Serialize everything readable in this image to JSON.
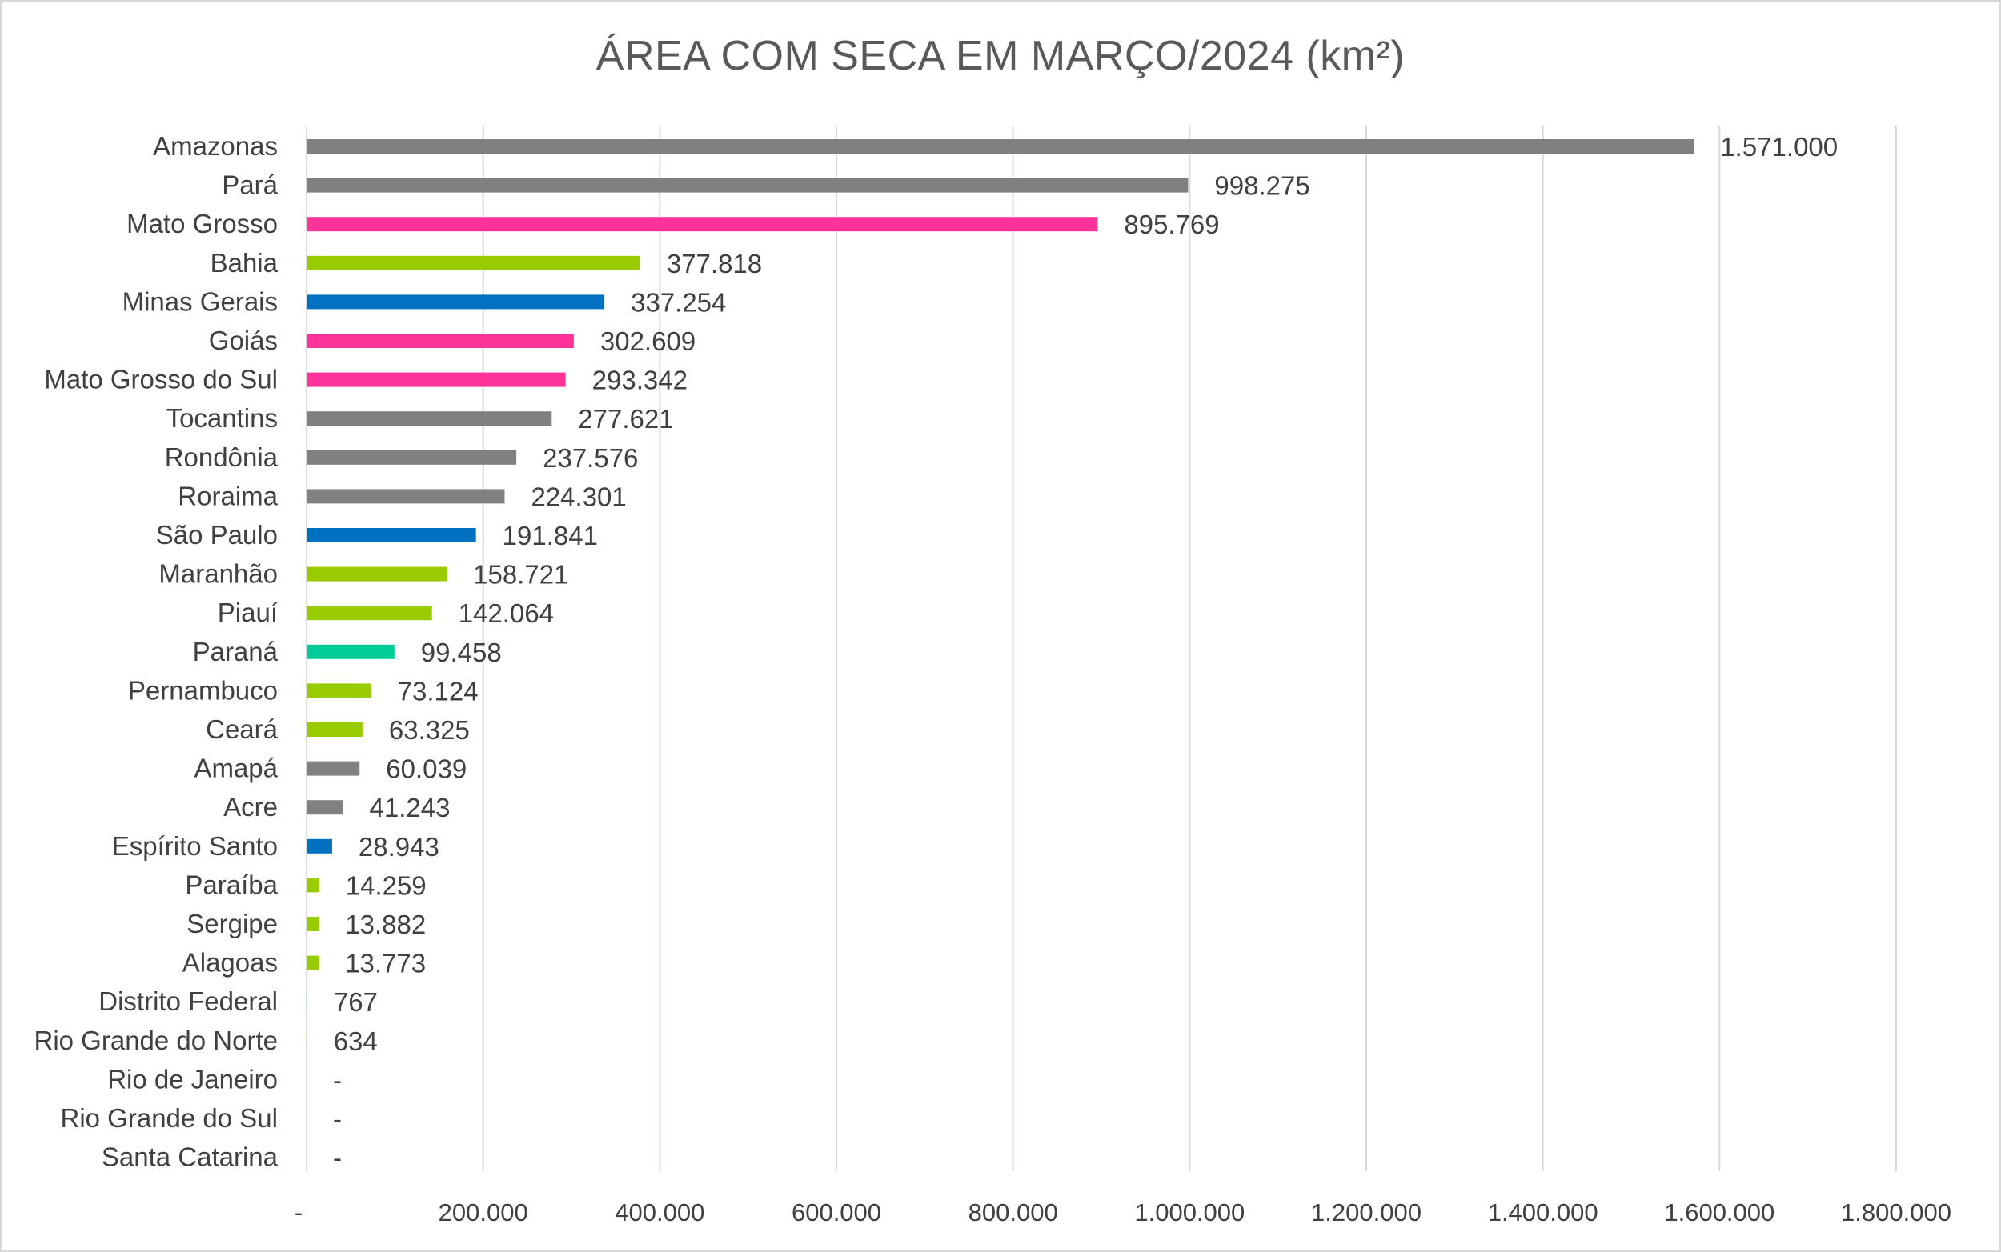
{
  "chart_data": {
    "type": "bar",
    "orientation": "horizontal",
    "title": "ÁREA COM SECA EM MARÇO/2024 (km²)",
    "xlabel": "",
    "ylabel": "",
    "xlim": [
      0,
      1800000
    ],
    "grid": "vertical",
    "legend": "none",
    "x_ticks": [
      {
        "value": 0,
        "label": "-"
      },
      {
        "value": 200000,
        "label": "200.000"
      },
      {
        "value": 400000,
        "label": "400.000"
      },
      {
        "value": 600000,
        "label": "600.000"
      },
      {
        "value": 800000,
        "label": "800.000"
      },
      {
        "value": 1000000,
        "label": "1.000.000"
      },
      {
        "value": 1200000,
        "label": "1.200.000"
      },
      {
        "value": 1400000,
        "label": "1.400.000"
      },
      {
        "value": 1600000,
        "label": "1.600.000"
      },
      {
        "value": 1800000,
        "label": "1.800.000"
      }
    ],
    "categories": [
      "Amazonas",
      "Pará",
      "Mato Grosso",
      "Bahia",
      "Minas Gerais",
      "Goiás",
      "Mato Grosso do Sul",
      "Tocantins",
      "Rondônia",
      "Roraima",
      "São Paulo",
      "Maranhão",
      "Piauí",
      "Paraná",
      "Pernambuco",
      "Ceará",
      "Amapá",
      "Acre",
      "Espírito Santo",
      "Paraíba",
      "Sergipe",
      "Alagoas",
      "Distrito Federal",
      "Rio Grande do Norte",
      "Rio de Janeiro",
      "Rio Grande do Sul",
      "Santa Catarina"
    ],
    "values": [
      1571000,
      998275,
      895769,
      377818,
      337254,
      302609,
      293342,
      277621,
      237576,
      224301,
      191841,
      158721,
      142064,
      99458,
      73124,
      63325,
      60039,
      41243,
      28943,
      14259,
      13882,
      13773,
      767,
      634,
      0,
      0,
      0
    ],
    "value_labels": [
      "1.571.000",
      "998.275",
      "895.769",
      "377.818",
      "337.254",
      "302.609",
      "293.342",
      "277.621",
      "237.576",
      "224.301",
      "191.841",
      "158.721",
      "142.064",
      "99.458",
      "73.124",
      "63.325",
      "60.039",
      "41.243",
      "28.943",
      "14.259",
      "13.882",
      "13.773",
      "767",
      "634",
      "-",
      "-",
      "-"
    ],
    "bar_colors": [
      "#808080",
      "#808080",
      "#ff3399",
      "#99cc00",
      "#0070c0",
      "#ff3399",
      "#ff3399",
      "#808080",
      "#808080",
      "#808080",
      "#0070c0",
      "#99cc00",
      "#99cc00",
      "#00cc99",
      "#99cc00",
      "#99cc00",
      "#808080",
      "#808080",
      "#0070c0",
      "#99cc00",
      "#99cc00",
      "#99cc00",
      "#0070c0",
      "#99cc00",
      "#0070c0",
      "#00cc99",
      "#00cc99"
    ],
    "colors": {
      "gridline": "#d9d9d9",
      "text": "#404040",
      "title": "#595959"
    }
  }
}
